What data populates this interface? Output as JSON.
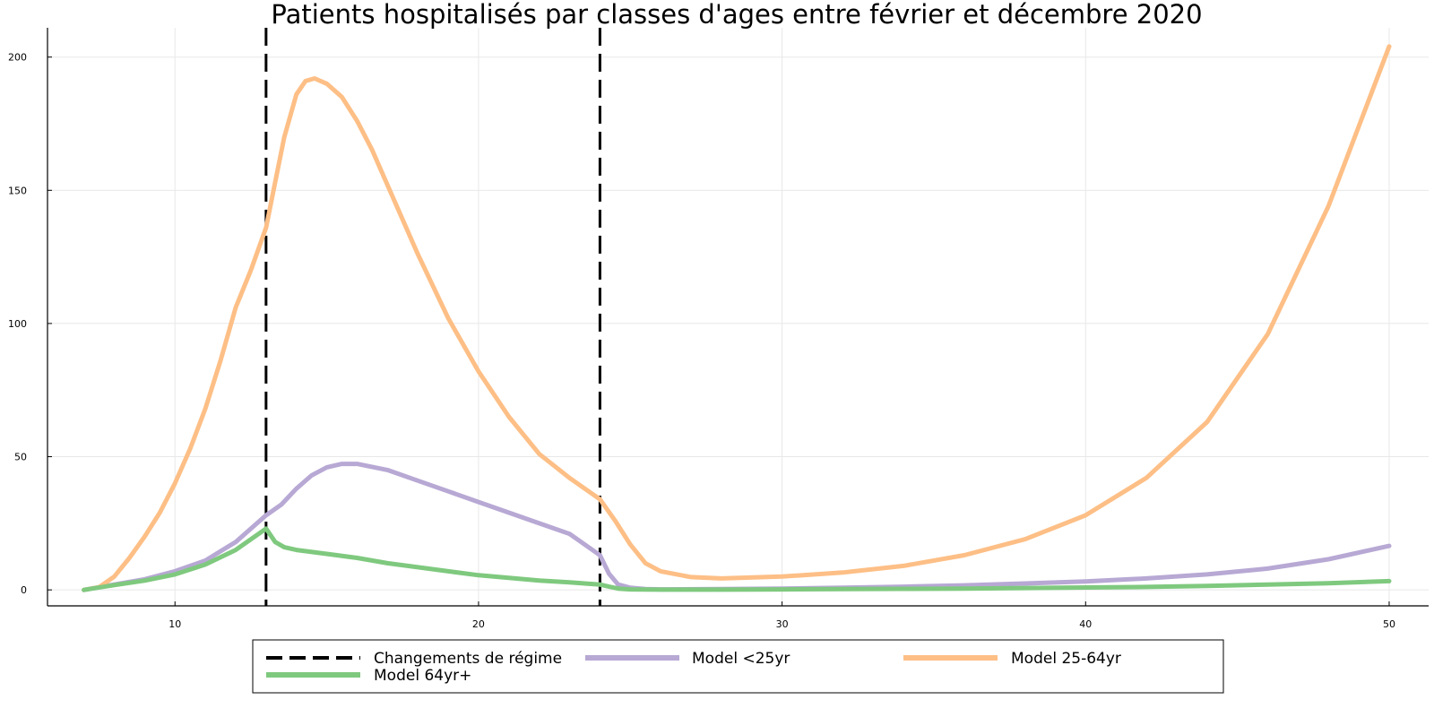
{
  "chart_data": {
    "type": "line",
    "title": "Patients hospitalisés par classes d'ages entre février et décembre 2020",
    "xlabel": "",
    "ylabel": "",
    "xlim": [
      5.8,
      51.3
    ],
    "ylim": [
      -6,
      211
    ],
    "x_ticks": [
      10,
      20,
      30,
      40,
      50
    ],
    "y_ticks": [
      0,
      50,
      100,
      150,
      200
    ],
    "grid": true,
    "legend_position": "bottom",
    "vlines": {
      "name": "Changements de régime",
      "x": [
        13,
        24
      ],
      "color": "#000000",
      "style": "dashed"
    },
    "series": [
      {
        "name": "Model <25yr",
        "color": "#b7a8d4",
        "x": [
          7,
          8,
          9,
          10,
          11,
          12,
          13,
          13.5,
          14,
          14.5,
          15,
          15.5,
          16,
          17,
          18,
          19,
          20,
          21,
          22,
          23,
          24,
          24.3,
          24.6,
          25,
          25.5,
          26,
          28,
          30,
          32,
          34,
          36,
          38,
          40,
          42,
          44,
          46,
          48,
          50
        ],
        "y": [
          0,
          2,
          4,
          7,
          11,
          18,
          28,
          32,
          38,
          43,
          46,
          47.3,
          47.3,
          45,
          41,
          37,
          33,
          29,
          25,
          21,
          13,
          6,
          2,
          0.8,
          0.3,
          0.2,
          0.3,
          0.5,
          0.8,
          1.2,
          1.7,
          2.4,
          3.2,
          4.3,
          5.8,
          8,
          11.5,
          16.5
        ]
      },
      {
        "name": "Model 25-64yr",
        "color": "#fdbf86",
        "x": [
          7,
          7.5,
          8,
          8.5,
          9,
          9.5,
          10,
          10.5,
          11,
          11.5,
          12,
          12.5,
          13,
          13.3,
          13.6,
          14,
          14.3,
          14.6,
          15,
          15.5,
          16,
          16.5,
          17,
          18,
          19,
          20,
          21,
          22,
          23,
          24,
          24.5,
          25,
          25.5,
          26,
          27,
          28,
          30,
          32,
          34,
          36,
          38,
          40,
          42,
          44,
          46,
          48,
          50
        ],
        "y": [
          0,
          1,
          5,
          12,
          20,
          29,
          40,
          53,
          68,
          86,
          106,
          120,
          136,
          153,
          170,
          186,
          191,
          192,
          190,
          185,
          176,
          165,
          152,
          126,
          102,
          82,
          65,
          51,
          42,
          34,
          26,
          17,
          10,
          7,
          4.8,
          4.3,
          5,
          6.5,
          9,
          13,
          19,
          28,
          42,
          63,
          96,
          144,
          204
        ]
      },
      {
        "name": "Model 64yr+",
        "color": "#7fc97f",
        "x": [
          7,
          8,
          9,
          10,
          11,
          12,
          13,
          13.3,
          13.6,
          14,
          15,
          16,
          17,
          18,
          19,
          20,
          21,
          22,
          23,
          24,
          24.3,
          24.6,
          25,
          26,
          28,
          30,
          32,
          34,
          36,
          38,
          40,
          42,
          44,
          46,
          48,
          50
        ],
        "y": [
          0,
          1.8,
          3.5,
          5.8,
          9.5,
          15,
          23,
          18,
          16,
          15,
          13.5,
          12,
          10,
          8.5,
          7,
          5.5,
          4.5,
          3.5,
          2.8,
          2,
          1.2,
          0.5,
          0.2,
          0.1,
          0.1,
          0.2,
          0.3,
          0.4,
          0.5,
          0.7,
          0.9,
          1.1,
          1.5,
          2,
          2.5,
          3.3
        ]
      }
    ]
  }
}
